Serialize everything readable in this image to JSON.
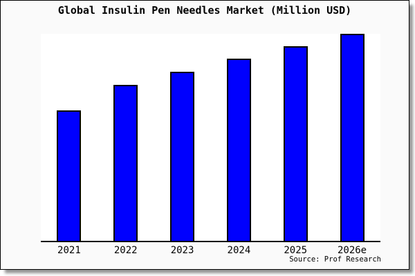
{
  "source_credit": "Source: Prof Research",
  "colors": {
    "bar_fill": "#0000fe",
    "bar_border": "#000000",
    "card_background": "#fafafa",
    "plot_background": "#ffffff",
    "axis_line": "#000000"
  },
  "chart_data": {
    "type": "bar",
    "title": "Global Insulin Pen Needles Market (Million USD)",
    "categories": [
      "2021",
      "2022",
      "2023",
      "2024",
      "2025",
      "2026e"
    ],
    "values": [
      62.9,
      75.3,
      81.6,
      88.0,
      94.0,
      100.0
    ],
    "values_note": "y-axis has no tick labels; values are relative bar heights as % of tallest bar (2026e)",
    "xlabel": "",
    "ylabel": "",
    "ylim": [
      0,
      100
    ],
    "grid": false,
    "legend": false,
    "bar_color": "#0000fe"
  }
}
